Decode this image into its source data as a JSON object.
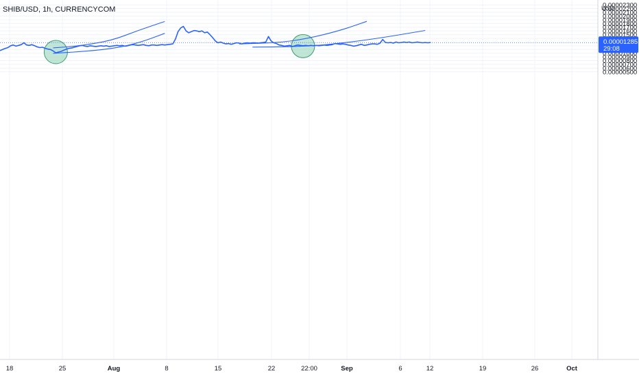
{
  "header": {
    "symbol_title": "SHIB/USD, 1h, CURRENCYCOM",
    "currency_label": "USD"
  },
  "chart_data": {
    "type": "line",
    "title": "SHIB/USD, 1h, CURRENCYCOM",
    "ylabel": "USD",
    "ylim": [
      4.8e-06,
      2.35e-05
    ],
    "y_ticks": [
      "0.00002300",
      "0.00002200",
      "0.00002100",
      "0.00002000",
      "0.00001900",
      "0.00001800",
      "0.00001700",
      "0.00001600",
      "0.00001500",
      "0.00001400",
      "0.00001200",
      "0.00001100",
      "0.00001000",
      "0.00000900",
      "0.00000800",
      "0.00000700",
      "0.00000600",
      "0.00000500"
    ],
    "x_ticks": [
      "18",
      "25",
      "Aug",
      "8",
      "15",
      "22",
      "22:00",
      "Sep",
      "6",
      "12",
      "19",
      "26",
      "Oct"
    ],
    "x_ticks_bold": [
      "Aug",
      "Sep",
      "Oct"
    ],
    "last_price": {
      "value": "0.00001285",
      "countdown": "29:08"
    },
    "series": [
      {
        "color": "#2962ff",
        "values": [
          1.07e-05,
          1.1e-05,
          1.13e-05,
          1.15e-05,
          1.2e-05,
          1.22e-05,
          1.19e-05,
          1.21e-05,
          1.23e-05,
          1.28e-05,
          1.22e-05,
          1.21e-05,
          1.23e-05,
          1.2e-05,
          1.17e-05,
          1.15e-05,
          1.16e-05,
          1.13e-05,
          1.11e-05,
          1.1e-05,
          1.06e-05,
          1.01e-05,
          1.03e-05,
          1.05e-05,
          1.08e-05,
          1.11e-05,
          1.13e-05,
          1.14e-05,
          1.16e-05,
          1.18e-05,
          1.2e-05,
          1.21e-05,
          1.19e-05,
          1.18e-05,
          1.2e-05,
          1.19e-05,
          1.18e-05,
          1.19e-05,
          1.2e-05,
          1.19e-05,
          1.2e-05,
          1.18e-05,
          1.19e-05,
          1.2e-05,
          1.21e-05,
          1.2e-05,
          1.21e-05,
          1.19e-05,
          1.2e-05,
          1.22e-05,
          1.23e-05,
          1.22e-05,
          1.21e-05,
          1.22e-05,
          1.23e-05,
          1.21e-05,
          1.2e-05,
          1.22e-05,
          1.22e-05,
          1.21e-05,
          1.22e-05,
          1.23e-05,
          1.22e-05,
          1.23e-05,
          1.24e-05,
          1.25e-05,
          1.38e-05,
          1.58e-05,
          1.68e-05,
          1.72e-05,
          1.6e-05,
          1.55e-05,
          1.58e-05,
          1.61e-05,
          1.6e-05,
          1.58e-05,
          1.6e-05,
          1.55e-05,
          1.57e-05,
          1.5e-05,
          1.42e-05,
          1.33e-05,
          1.28e-05,
          1.3e-05,
          1.27e-05,
          1.25e-05,
          1.26e-05,
          1.24e-05,
          1.26e-05,
          1.28e-05,
          1.27e-05,
          1.25e-05,
          1.27e-05,
          1.28e-05,
          1.27e-05,
          1.28e-05,
          1.28e-05,
          1.27e-05,
          1.28e-05,
          1.29e-05,
          1.3e-05,
          1.45e-05,
          1.33e-05,
          1.28e-05,
          1.26e-05,
          1.22e-05,
          1.21e-05,
          1.19e-05,
          1.2e-05,
          1.21e-05,
          1.18e-05,
          1.2e-05,
          1.22e-05,
          1.21e-05,
          1.2e-05,
          1.21e-05,
          1.2e-05,
          1.21e-05,
          1.2e-05,
          1.21e-05,
          1.2e-05,
          1.21e-05,
          1.22e-05,
          1.21e-05,
          1.22e-05,
          1.23e-05,
          1.26e-05,
          1.25e-05,
          1.24e-05,
          1.25e-05,
          1.24e-05,
          1.22e-05,
          1.21e-05,
          1.19e-05,
          1.2e-05,
          1.22e-05,
          1.24e-05,
          1.21e-05,
          1.22e-05,
          1.24e-05,
          1.25e-05,
          1.25e-05,
          1.24e-05,
          1.27e-05,
          1.37e-05,
          1.29e-05,
          1.28e-05,
          1.29e-05,
          1.27e-05,
          1.3e-05,
          1.28e-05,
          1.29e-05,
          1.3e-05,
          1.29e-05,
          1.3e-05,
          1.28e-05,
          1.29e-05,
          1.3e-05,
          1.29e-05,
          1.28e-05,
          1.29e-05,
          1.28e-05,
          1.29e-05
        ]
      }
    ],
    "annotations": {
      "arcs": [
        {
          "label": "upper-arc-1",
          "color": "#2962ff",
          "points": [
            [
              20,
              1.143e-05
            ],
            [
              30,
              1.197e-05
            ],
            [
              42,
              1.34e-05
            ],
            [
              52,
              1.614e-05
            ],
            [
              62,
              1.854e-05
            ]
          ]
        },
        {
          "label": "lower-arc-1",
          "color": "#2962ff",
          "points": [
            [
              20,
              9.95e-06
            ],
            [
              30,
              1.04e-05
            ],
            [
              42,
              1.118e-05
            ],
            [
              52,
              1.27e-05
            ],
            [
              62,
              1.534e-05
            ]
          ]
        },
        {
          "label": "upper-arc-2",
          "color": "#2962ff",
          "points": [
            [
              90,
              1.248e-05
            ],
            [
              105,
              1.286e-05
            ],
            [
              115,
              1.383e-05
            ],
            [
              128,
              1.61e-05
            ],
            [
              138,
              1.858e-05
            ]
          ]
        },
        {
          "label": "lower-arc-2",
          "color": "#2962ff",
          "points": [
            [
              95,
              1.163e-05
            ],
            [
              110,
              1.172e-05
            ],
            [
              122,
              1.218e-05
            ],
            [
              140,
              1.372e-05
            ],
            [
              160,
              1.612e-05
            ]
          ]
        }
      ],
      "circles": [
        {
          "label": "highlight-circle-1",
          "at": [
            21,
            1.03e-05
          ],
          "color": "#8fd2b4"
        },
        {
          "label": "highlight-circle-2",
          "at": [
            114,
            1.19e-05
          ],
          "color": "#8fd2b4"
        }
      ]
    },
    "grid": true,
    "legend": "none"
  }
}
